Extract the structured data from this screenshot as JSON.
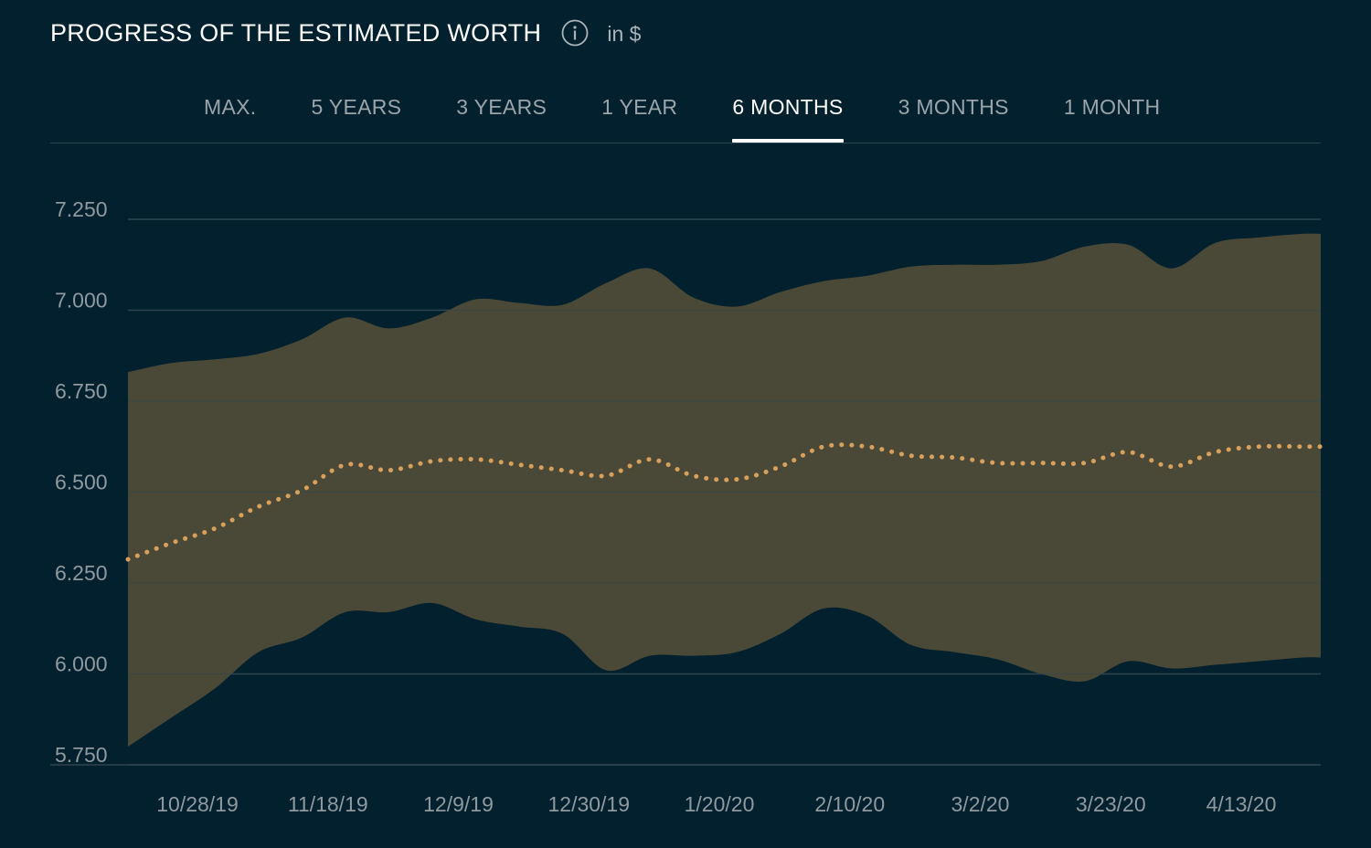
{
  "header": {
    "title": "PROGRESS OF THE ESTIMATED WORTH",
    "info_icon": "info-circle-icon",
    "unit": "in $"
  },
  "tabs": [
    {
      "label": "MAX.",
      "active": false
    },
    {
      "label": "5 YEARS",
      "active": false
    },
    {
      "label": "3 YEARS",
      "active": false
    },
    {
      "label": "1 YEAR",
      "active": false
    },
    {
      "label": "6 MONTHS",
      "active": true
    },
    {
      "label": "3 MONTHS",
      "active": false
    },
    {
      "label": "1 MONTH",
      "active": false
    }
  ],
  "colors": {
    "background": "#02202d",
    "band": "#4e4c38",
    "median": "#d9a05b",
    "grid": "#2c4450",
    "tick": "#8f9aa0"
  },
  "chart_data": {
    "type": "area",
    "xlabel": "",
    "ylabel": "",
    "x_tick_labels": [
      "10/28/19",
      "11/18/19",
      "12/9/19",
      "12/30/19",
      "1/20/20",
      "2/10/20",
      "3/2/20",
      "3/23/20",
      "4/13/20"
    ],
    "y_tick_labels": [
      "7.250",
      "7.000",
      "6.750",
      "6.500",
      "6.250",
      "6.000",
      "5.750"
    ],
    "y_ticks": [
      7250,
      7000,
      6750,
      6500,
      6250,
      6000,
      5750
    ],
    "ylim": [
      5750,
      7250
    ],
    "grid": true,
    "x": [
      "10/16/19",
      "10/23/19",
      "10/30/19",
      "11/6/19",
      "11/13/19",
      "11/20/19",
      "11/27/19",
      "12/4/19",
      "12/11/19",
      "12/18/19",
      "12/25/19",
      "1/1/20",
      "1/8/20",
      "1/15/20",
      "1/22/20",
      "1/29/20",
      "2/5/20",
      "2/12/20",
      "2/19/20",
      "2/26/20",
      "3/4/20",
      "3/11/20",
      "3/18/20",
      "3/25/20",
      "4/1/20",
      "4/8/20",
      "4/15/20",
      "4/22/20",
      "4/25/20"
    ],
    "series": [
      {
        "style": "band-upper",
        "values": [
          6830,
          6855,
          6865,
          6880,
          6920,
          6980,
          6950,
          6980,
          7030,
          7020,
          7015,
          7075,
          7115,
          7035,
          7010,
          7050,
          7080,
          7095,
          7120,
          7125,
          7125,
          7135,
          7175,
          7180,
          7115,
          7185,
          7200,
          7210,
          7210
        ]
      },
      {
        "style": "band-lower",
        "values": [
          5800,
          5880,
          5960,
          6060,
          6100,
          6170,
          6170,
          6195,
          6150,
          6130,
          6110,
          6010,
          6050,
          6050,
          6060,
          6110,
          6180,
          6160,
          6080,
          6060,
          6040,
          6000,
          5980,
          6035,
          6015,
          6025,
          6035,
          6045,
          6045
        ]
      },
      {
        "style": "median-dotted",
        "values": [
          6315,
          6360,
          6400,
          6460,
          6505,
          6575,
          6560,
          6585,
          6590,
          6575,
          6560,
          6545,
          6590,
          6545,
          6535,
          6570,
          6625,
          6625,
          6600,
          6595,
          6580,
          6580,
          6580,
          6610,
          6570,
          6610,
          6625,
          6625,
          6625
        ]
      }
    ]
  }
}
